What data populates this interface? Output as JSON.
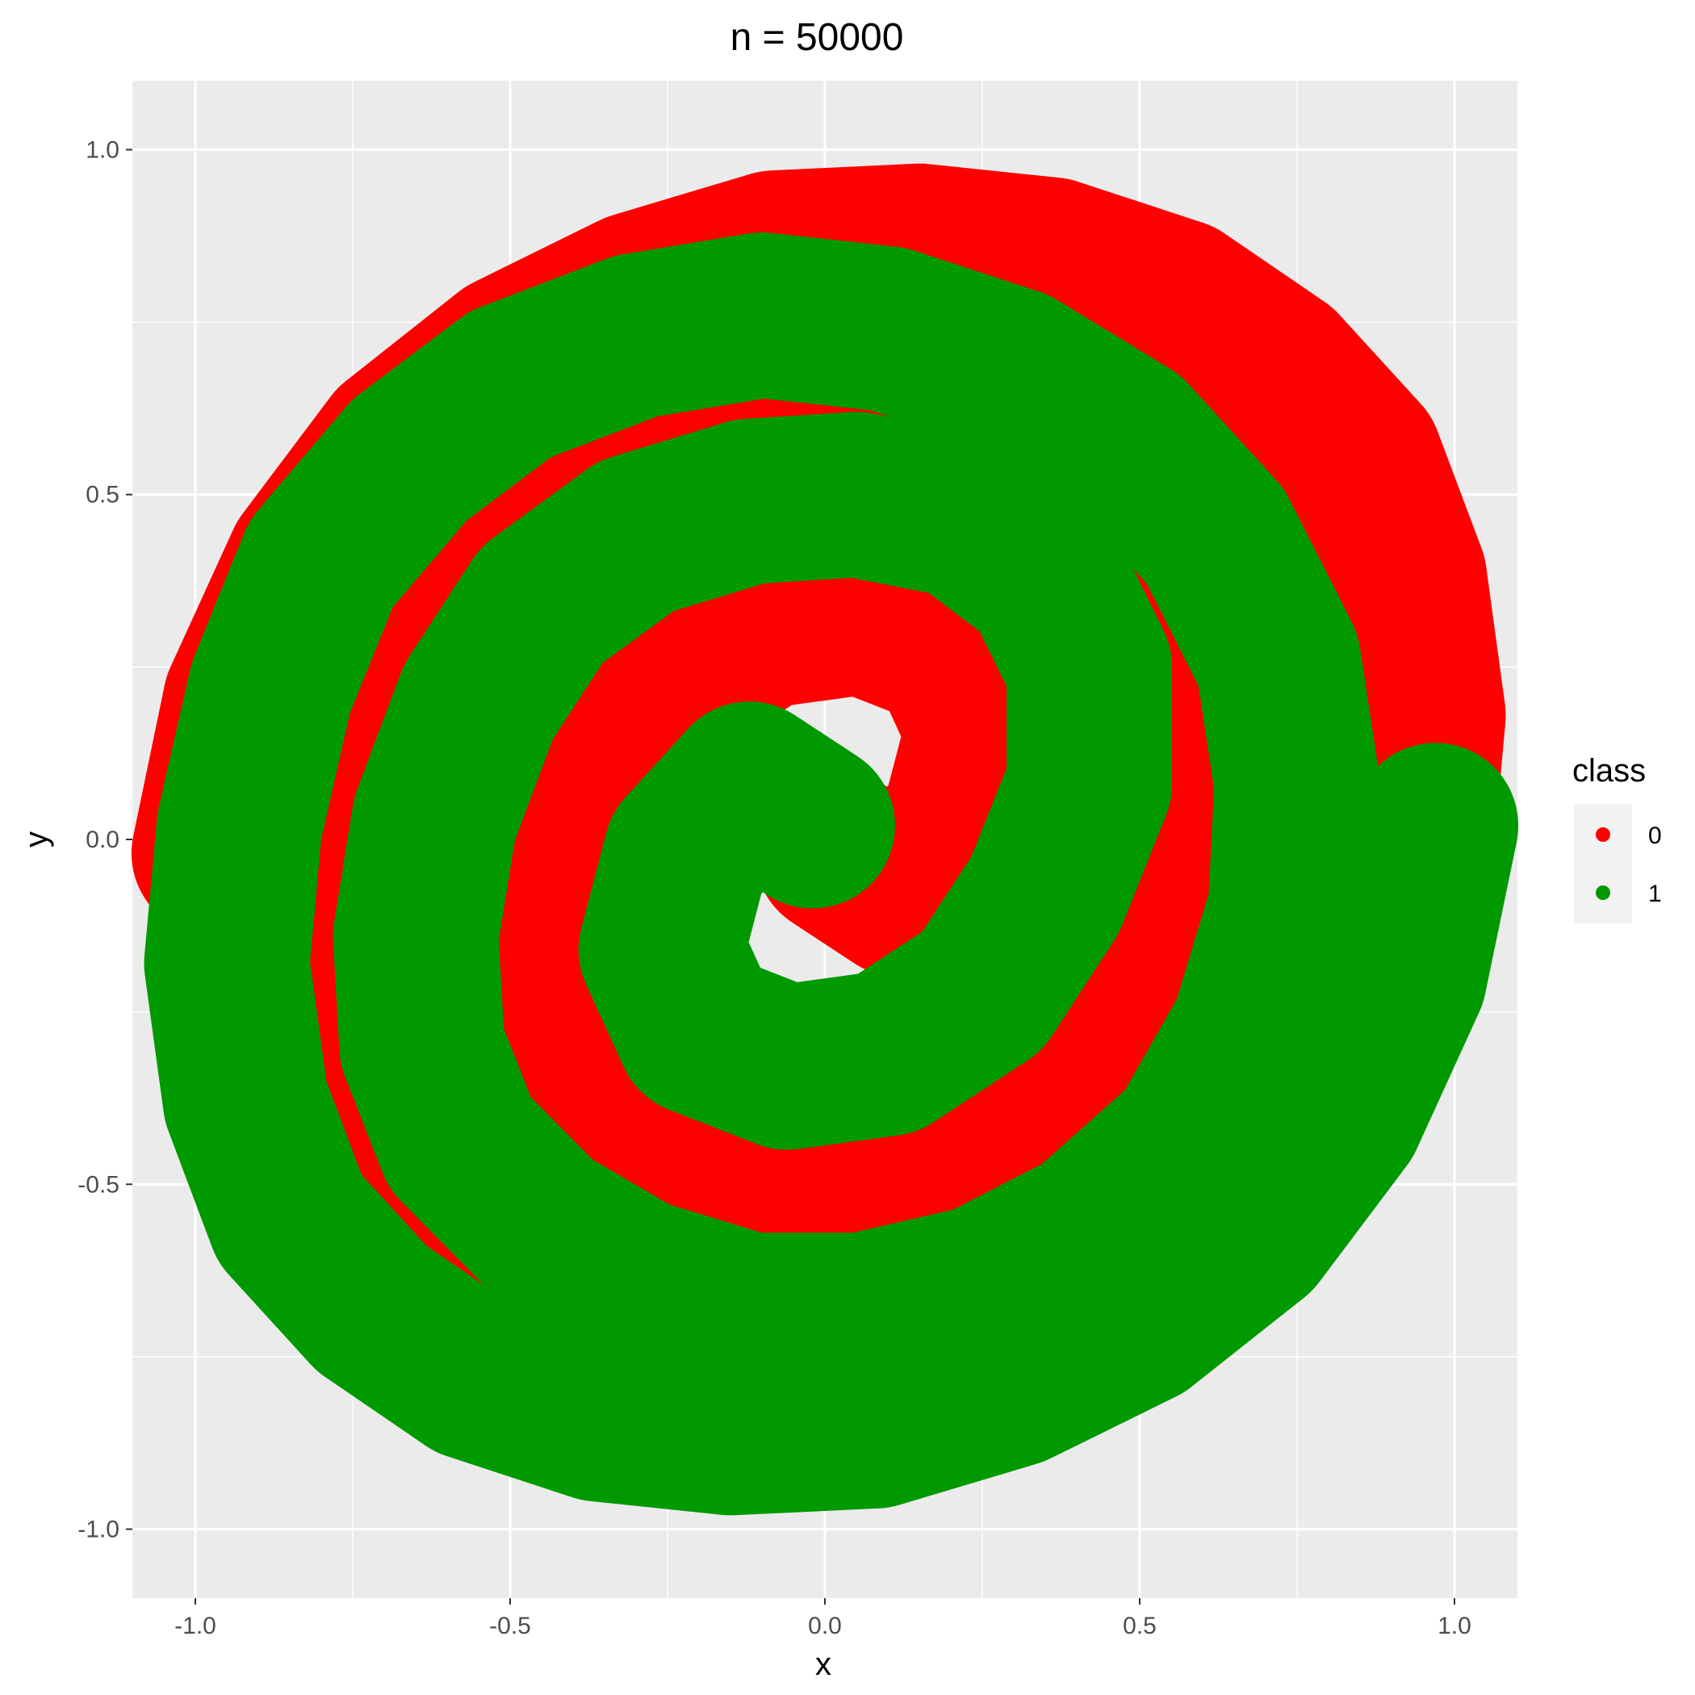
{
  "chart_data": {
    "type": "scatter",
    "title": "n = 50000",
    "xlabel": "x",
    "ylabel": "y",
    "xlim": [
      -1.1,
      1.1
    ],
    "ylim": [
      -1.1,
      1.1
    ],
    "x_ticks": [
      -1.0,
      -0.5,
      0.0,
      0.5,
      1.0
    ],
    "y_ticks": [
      -1.0,
      -0.5,
      0.0,
      0.5,
      1.0
    ],
    "x_tick_labels": [
      "-1.0",
      "-0.5",
      "0.0",
      "0.5",
      "1.0"
    ],
    "y_tick_labels": [
      "-1.0",
      "-0.5",
      "0.0",
      "0.5",
      "1.0"
    ],
    "grid": true,
    "legend": {
      "title": "class",
      "position": "right",
      "entries": [
        {
          "label": "0",
          "color": "#FF0000"
        },
        {
          "label": "1",
          "color": "#009900"
        }
      ]
    },
    "series": [
      {
        "name": "0",
        "color": "#FF0000",
        "description_points": "spiral arm",
        "x": [
          0.02,
          0.12,
          0.22,
          0.26,
          0.2,
          0.06,
          -0.1,
          -0.25,
          -0.35,
          -0.42,
          -0.42,
          -0.35,
          -0.22,
          -0.05,
          0.12,
          0.3,
          0.45,
          0.55,
          0.62,
          0.65,
          0.64,
          0.58,
          0.45,
          0.3,
          0.12,
          -0.06,
          -0.25,
          -0.42,
          -0.58,
          -0.68,
          -0.74,
          -0.75,
          -0.72,
          -0.62,
          -0.48,
          -0.3,
          -0.1,
          0.1,
          0.3,
          0.5,
          0.66,
          0.8,
          0.88,
          0.93,
          0.95,
          0.92,
          0.85,
          0.72,
          0.56,
          0.36,
          0.15,
          -0.08,
          -0.3,
          -0.5,
          -0.68,
          -0.82,
          -0.92,
          -0.97
        ],
        "y": [
          -0.02,
          -0.08,
          0.02,
          0.16,
          0.28,
          0.33,
          0.31,
          0.22,
          0.08,
          -0.08,
          -0.25,
          -0.38,
          -0.47,
          -0.5,
          -0.49,
          -0.44,
          -0.34,
          -0.2,
          -0.03,
          0.14,
          0.3,
          0.44,
          0.56,
          0.64,
          0.69,
          0.69,
          0.65,
          0.57,
          0.44,
          0.28,
          0.1,
          -0.08,
          -0.26,
          -0.44,
          -0.58,
          -0.68,
          -0.74,
          -0.76,
          -0.73,
          -0.66,
          -0.55,
          -0.4,
          -0.22,
          -0.02,
          0.18,
          0.38,
          0.55,
          0.68,
          0.78,
          0.84,
          0.86,
          0.85,
          0.79,
          0.7,
          0.57,
          0.4,
          0.2,
          -0.02
        ]
      },
      {
        "name": "1",
        "color": "#009900",
        "description_points": "spiral arm",
        "x": [
          -0.02,
          -0.12,
          -0.22,
          -0.26,
          -0.2,
          -0.06,
          0.1,
          0.25,
          0.35,
          0.42,
          0.42,
          0.35,
          0.22,
          0.05,
          -0.12,
          -0.3,
          -0.45,
          -0.55,
          -0.62,
          -0.65,
          -0.64,
          -0.58,
          -0.45,
          -0.3,
          -0.12,
          0.06,
          0.25,
          0.42,
          0.58,
          0.68,
          0.74,
          0.75,
          0.72,
          0.62,
          0.48,
          0.3,
          0.1,
          -0.1,
          -0.3,
          -0.5,
          -0.66,
          -0.8,
          -0.88,
          -0.93,
          -0.95,
          -0.92,
          -0.85,
          -0.72,
          -0.56,
          -0.36,
          -0.15,
          0.08,
          0.3,
          0.5,
          0.68,
          0.82,
          0.92,
          0.97
        ],
        "y": [
          0.02,
          0.08,
          -0.02,
          -0.16,
          -0.28,
          -0.33,
          -0.31,
          -0.22,
          -0.08,
          0.08,
          0.25,
          0.38,
          0.47,
          0.5,
          0.49,
          0.44,
          0.34,
          0.2,
          0.03,
          -0.14,
          -0.3,
          -0.44,
          -0.56,
          -0.64,
          -0.69,
          -0.69,
          -0.65,
          -0.57,
          -0.44,
          -0.28,
          -0.1,
          0.08,
          0.26,
          0.44,
          0.58,
          0.68,
          0.74,
          0.76,
          0.73,
          0.66,
          0.55,
          0.4,
          0.22,
          0.02,
          -0.18,
          -0.38,
          -0.55,
          -0.68,
          -0.78,
          -0.84,
          -0.86,
          -0.85,
          -0.79,
          -0.7,
          -0.57,
          -0.4,
          -0.2,
          0.02
        ]
      }
    ]
  }
}
